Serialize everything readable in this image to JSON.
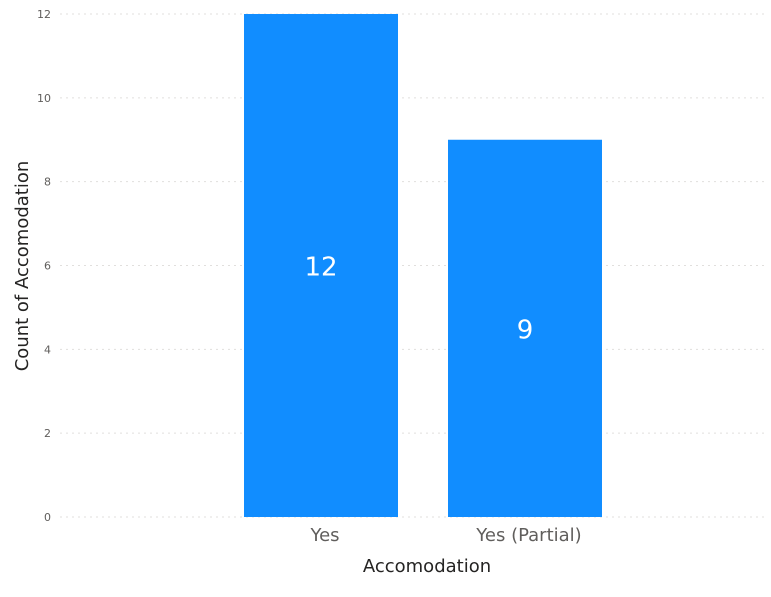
{
  "chart_data": {
    "type": "bar",
    "title": "",
    "xlabel": "Accomodation",
    "ylabel": "Count of Accomodation",
    "categories": [
      "Yes",
      "Yes (Partial)"
    ],
    "values": [
      12,
      9
    ],
    "data_labels": [
      "12",
      "9"
    ],
    "ylim": [
      0,
      12
    ],
    "yticks": [
      0,
      2,
      4,
      6,
      8,
      10,
      12
    ],
    "ytick_labels": [
      "0",
      "2",
      "4",
      "6",
      "8",
      "10",
      "12"
    ],
    "grid": true,
    "legend": "none",
    "bar_color": "#118DFF"
  }
}
